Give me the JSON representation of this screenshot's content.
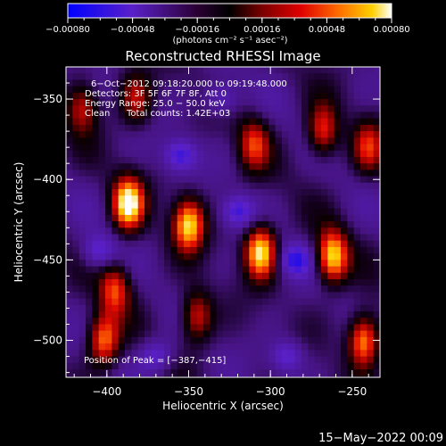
{
  "chart_data": {
    "type": "heatmap",
    "title": "Reconstructed RHESSI Image",
    "xlabel": "Heliocentric X (arcsec)",
    "ylabel": "Heliocentric Y (arcsec)",
    "xlim": [
      -425,
      -233
    ],
    "ylim": [
      -523,
      -330
    ],
    "x_ticks": [
      -400,
      -350,
      -300,
      -250
    ],
    "x_tick_labels": [
      "−400",
      "−350",
      "−300",
      "−250"
    ],
    "y_ticks": [
      -350,
      -400,
      -450,
      -500
    ],
    "y_tick_labels": [
      "−350",
      "−400",
      "−450",
      "−500"
    ],
    "colorbar": {
      "min": -0.0008,
      "max": 0.0008,
      "ticks": [
        -0.0008,
        -0.00048,
        -0.00016,
        0.00016,
        0.00048,
        0.0008
      ],
      "tick_labels": [
        "−0.00080",
        "−0.00048",
        "−0.00016",
        "0.00016",
        "0.00048",
        "0.00080"
      ],
      "unit_label": "(photons cm⁻² s⁻¹ asec⁻²)",
      "colors": [
        "#0000ff",
        "#5a20c8",
        "#2a0033",
        "#000000",
        "#7a0000",
        "#e00000",
        "#ff7000",
        "#ffd000",
        "#ffffff"
      ]
    },
    "annotations": {
      "time_range": "6−Oct−2012 09:18:20.000 to 09:19:48.000",
      "detectors": "Detectors: 3F 5F 6F 7F 8F, Att 0",
      "energy": "Energy Range: 25.0 − 50.0 keV",
      "algorithm": "Clean",
      "counts": "Total counts: 1.42E+03",
      "peak": "Position of Peak = [−387,−415]"
    },
    "peak_position": [
      -387,
      -415
    ],
    "bright_sources": [
      {
        "x": -387,
        "y": -415,
        "level": 1.0
      },
      {
        "x": -350,
        "y": -428,
        "level": 0.9
      },
      {
        "x": -306,
        "y": -445,
        "level": 0.95
      },
      {
        "x": -262,
        "y": -448,
        "level": 0.9
      },
      {
        "x": -243,
        "y": -500,
        "level": 0.8
      },
      {
        "x": -395,
        "y": -468,
        "level": 0.6
      },
      {
        "x": -402,
        "y": -500,
        "level": 0.7
      },
      {
        "x": -345,
        "y": -485,
        "level": 0.55
      },
      {
        "x": -310,
        "y": -378,
        "level": 0.55
      },
      {
        "x": -268,
        "y": -370,
        "level": 0.6
      },
      {
        "x": -415,
        "y": -355,
        "level": 0.5
      },
      {
        "x": -382,
        "y": -350,
        "level": 0.45
      },
      {
        "x": -240,
        "y": -380,
        "level": 0.5
      }
    ],
    "dim_sources": [
      {
        "x": -355,
        "y": -385,
        "level": 0.6
      },
      {
        "x": -320,
        "y": -420,
        "level": 0.55
      },
      {
        "x": -285,
        "y": -450,
        "level": 0.6
      },
      {
        "x": -405,
        "y": -445,
        "level": 0.5
      },
      {
        "x": -370,
        "y": -510,
        "level": 0.5
      },
      {
        "x": -290,
        "y": -510,
        "level": 0.5
      },
      {
        "x": -330,
        "y": -350,
        "level": 0.45
      }
    ]
  },
  "footer": {
    "date": "15−May−2022 00:09"
  }
}
